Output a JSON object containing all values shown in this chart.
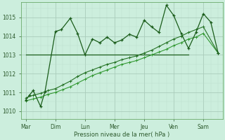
{
  "xlabel": "Pression niveau de la mer( hPa )",
  "background_color": "#cceedd",
  "grid_color_major": "#aaccbb",
  "grid_color_minor": "#bbddcc",
  "line_color_dark": "#1a5c1a",
  "line_color_mid": "#267326",
  "line_color_light": "#339933",
  "x_labels": [
    "Mar",
    "Dim",
    "Lun",
    "Mer",
    "Jeu",
    "Ven",
    "Sam"
  ],
  "x_ticks": [
    0,
    1,
    2,
    3,
    4,
    5,
    6
  ],
  "ylim": [
    1009.6,
    1015.8
  ],
  "yticks": [
    1010,
    1011,
    1012,
    1013,
    1014,
    1015
  ],
  "line1_x": [
    0.0,
    0.12,
    0.25,
    0.5,
    0.65,
    1.0,
    1.2,
    1.5,
    1.75,
    2.0,
    2.25,
    2.5,
    2.75,
    3.0,
    3.25,
    3.5,
    3.75,
    4.0,
    4.25,
    4.5,
    4.75,
    5.0,
    5.25,
    5.5,
    5.75,
    6.0,
    6.25,
    6.5
  ],
  "line1_y": [
    1010.6,
    1010.85,
    1011.1,
    1010.25,
    1011.05,
    1014.25,
    1014.35,
    1014.95,
    1014.15,
    1013.0,
    1013.85,
    1013.65,
    1013.95,
    1013.65,
    1013.8,
    1014.1,
    1013.95,
    1014.85,
    1014.5,
    1014.2,
    1015.65,
    1015.1,
    1014.15,
    1013.35,
    1014.2,
    1015.2,
    1014.75,
    1013.1
  ],
  "line2_x": [
    0.0,
    0.25,
    0.5,
    0.75,
    1.0,
    1.25,
    1.5,
    1.75,
    2.0,
    2.25,
    2.5,
    2.75,
    3.0,
    3.25,
    3.5,
    3.75,
    4.0,
    4.25,
    4.5,
    4.75,
    5.0,
    5.25,
    5.5,
    5.75,
    6.0,
    6.5
  ],
  "line2_y": [
    1010.7,
    1010.85,
    1010.95,
    1011.1,
    1011.2,
    1011.4,
    1011.6,
    1011.85,
    1012.05,
    1012.2,
    1012.35,
    1012.5,
    1012.6,
    1012.75,
    1012.85,
    1012.95,
    1013.1,
    1013.25,
    1013.45,
    1013.65,
    1013.85,
    1014.0,
    1014.2,
    1014.35,
    1014.5,
    1013.1
  ],
  "line3_x": [
    0.0,
    0.25,
    0.5,
    0.75,
    1.0,
    1.25,
    1.5,
    1.75,
    2.0,
    2.25,
    2.5,
    2.75,
    3.0,
    3.25,
    3.5,
    3.75,
    4.0,
    4.25,
    4.5,
    4.75,
    5.0,
    5.25,
    5.5,
    5.75,
    6.0,
    6.5
  ],
  "line3_y": [
    1010.55,
    1010.65,
    1010.75,
    1010.9,
    1011.0,
    1011.15,
    1011.3,
    1011.5,
    1011.7,
    1011.9,
    1012.05,
    1012.2,
    1012.35,
    1012.5,
    1012.6,
    1012.7,
    1012.85,
    1013.0,
    1013.15,
    1013.3,
    1013.5,
    1013.65,
    1013.85,
    1013.95,
    1014.15,
    1013.1
  ],
  "line_horiz_y": 1013.0,
  "line_horiz_x_start": 0.0,
  "line_horiz_x_end": 5.5
}
